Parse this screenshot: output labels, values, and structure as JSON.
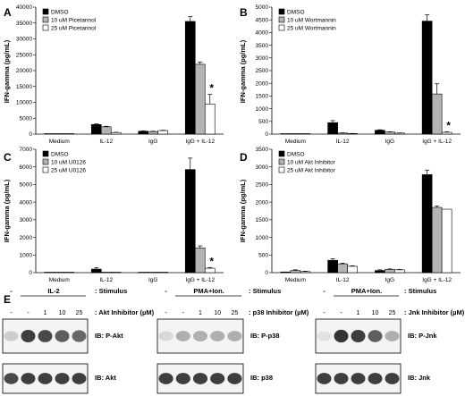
{
  "chart_data": [
    {
      "panel": "A",
      "type": "bar",
      "ylabel": "IFN-gamma (pg/mL)",
      "ylim": [
        0,
        40000
      ],
      "yticks": [
        "0",
        "5000",
        "10000",
        "15000",
        "20000",
        "25000",
        "30000",
        "35000",
        "40000"
      ],
      "categories": [
        "Medium",
        "IL-12",
        "IgG",
        "IgG + IL-12"
      ],
      "series": [
        {
          "name": "DMSO",
          "color": "#000000",
          "values": [
            50,
            3000,
            900,
            35500
          ],
          "errors": [
            0,
            200,
            100,
            1500
          ]
        },
        {
          "name": "10 uM Picetannol",
          "color": "#b4b4b4",
          "values": [
            40,
            2300,
            800,
            22000
          ],
          "errors": [
            0,
            150,
            100,
            700
          ]
        },
        {
          "name": "25 uM Picetannol",
          "color": "#ffffff",
          "values": [
            30,
            500,
            1100,
            9500
          ],
          "errors": [
            0,
            80,
            100,
            3000
          ]
        }
      ],
      "annotations": [
        {
          "text": "*",
          "category": 3,
          "series": 2
        }
      ],
      "legend": "top-left"
    },
    {
      "panel": "B",
      "type": "bar",
      "ylabel": "IFN-gamma (pg/mL)",
      "ylim": [
        0,
        5000
      ],
      "yticks": [
        "0",
        "500",
        "1000",
        "1500",
        "2000",
        "2500",
        "3000",
        "3500",
        "4000",
        "4500",
        "5000"
      ],
      "categories": [
        "Medium",
        "IL-12",
        "IgG",
        "IgG + IL-12"
      ],
      "series": [
        {
          "name": "DMSO",
          "color": "#000000",
          "values": [
            10,
            450,
            150,
            4450
          ],
          "errors": [
            0,
            80,
            20,
            250
          ]
        },
        {
          "name": "10 uM Wortmannin",
          "color": "#b4b4b4",
          "values": [
            10,
            40,
            80,
            1580
          ],
          "errors": [
            0,
            10,
            10,
            400
          ]
        },
        {
          "name": "25 uM Wortmannin",
          "color": "#ffffff",
          "values": [
            10,
            20,
            40,
            70
          ],
          "errors": [
            0,
            5,
            5,
            20
          ]
        }
      ],
      "annotations": [
        {
          "text": "*",
          "category": 3,
          "series": 2
        }
      ],
      "legend": "top-left"
    },
    {
      "panel": "C",
      "type": "bar",
      "ylabel": "IFN-gamma (pg/mL)",
      "ylim": [
        0,
        7000
      ],
      "yticks": [
        "0",
        "1000",
        "2000",
        "3000",
        "4000",
        "5000",
        "6000",
        "7000"
      ],
      "categories": [
        "Medium",
        "IL-12",
        "IgG",
        "IgG + IL-12"
      ],
      "series": [
        {
          "name": "DMSO",
          "color": "#000000",
          "values": [
            20,
            200,
            20,
            5850
          ],
          "errors": [
            0,
            80,
            0,
            650
          ]
        },
        {
          "name": "10 uM U0126",
          "color": "#b4b4b4",
          "values": [
            10,
            20,
            10,
            1400
          ],
          "errors": [
            0,
            0,
            0,
            120
          ]
        },
        {
          "name": "25 uM U0126",
          "color": "#ffffff",
          "values": [
            10,
            10,
            10,
            250
          ],
          "errors": [
            0,
            0,
            0,
            40
          ]
        }
      ],
      "annotations": [
        {
          "text": "*",
          "category": 3,
          "series": 2
        }
      ],
      "legend": "top-left"
    },
    {
      "panel": "D",
      "type": "bar",
      "ylabel": "IFN-gamma (pg/mL)",
      "ylim": [
        0,
        3500
      ],
      "yticks": [
        "0",
        "500",
        "1000",
        "1500",
        "2000",
        "2500",
        "3000",
        "3500"
      ],
      "categories": [
        "Medium",
        "IL-12",
        "IgG",
        "IgG + IL-12"
      ],
      "series": [
        {
          "name": "DMSO",
          "color": "#000000",
          "values": [
            20,
            350,
            60,
            2780
          ],
          "errors": [
            0,
            40,
            20,
            130
          ]
        },
        {
          "name": "10 uM Akt Inhibitor",
          "color": "#b4b4b4",
          "values": [
            60,
            250,
            90,
            1850
          ],
          "errors": [
            20,
            20,
            15,
            40
          ]
        },
        {
          "name": "25 uM Akt Inhibitor",
          "color": "#ffffff",
          "values": [
            30,
            180,
            80,
            1800
          ],
          "errors": [
            10,
            15,
            10,
            0
          ]
        }
      ],
      "annotations": [],
      "legend": "top-left"
    }
  ],
  "blots": {
    "panel_letter": "E",
    "stimulus_label": ": Stimulus",
    "groups": [
      {
        "stimulus_neg": "-",
        "stimulus_pos": "IL-2",
        "lanes": [
          "-",
          "-",
          "1",
          "10",
          "25"
        ],
        "inhibitor_label": ": Akt Inhibitor (µM)",
        "top_blot": "IB: P-Akt",
        "bottom_blot": "IB: Akt",
        "top_intensity": [
          0.15,
          0.85,
          0.8,
          0.7,
          0.65
        ],
        "bottom_intensity": [
          0.8,
          0.85,
          0.85,
          0.85,
          0.85
        ]
      },
      {
        "stimulus_neg": "-",
        "stimulus_pos": "PMA+Ion.",
        "lanes": [
          "-",
          "-",
          "1",
          "10",
          "25"
        ],
        "inhibitor_label": ": p38 Inhibitor (µM)",
        "top_blot": "IB: P-p38",
        "bottom_blot": "IB: p38",
        "top_intensity": [
          0.1,
          0.3,
          0.3,
          0.3,
          0.3
        ],
        "bottom_intensity": [
          0.85,
          0.85,
          0.85,
          0.85,
          0.85
        ]
      },
      {
        "stimulus_neg": "-",
        "stimulus_pos": "PMA+Ion.",
        "lanes": [
          "-",
          "-",
          "1",
          "10",
          "25"
        ],
        "inhibitor_label": ": Jnk Inhibitor (µM)",
        "top_blot": "IB: P-Jnk",
        "bottom_blot": "IB: Jnk",
        "top_intensity": [
          0.05,
          0.9,
          0.85,
          0.7,
          0.3
        ],
        "bottom_intensity": [
          0.85,
          0.85,
          0.85,
          0.85,
          0.85
        ]
      }
    ]
  }
}
